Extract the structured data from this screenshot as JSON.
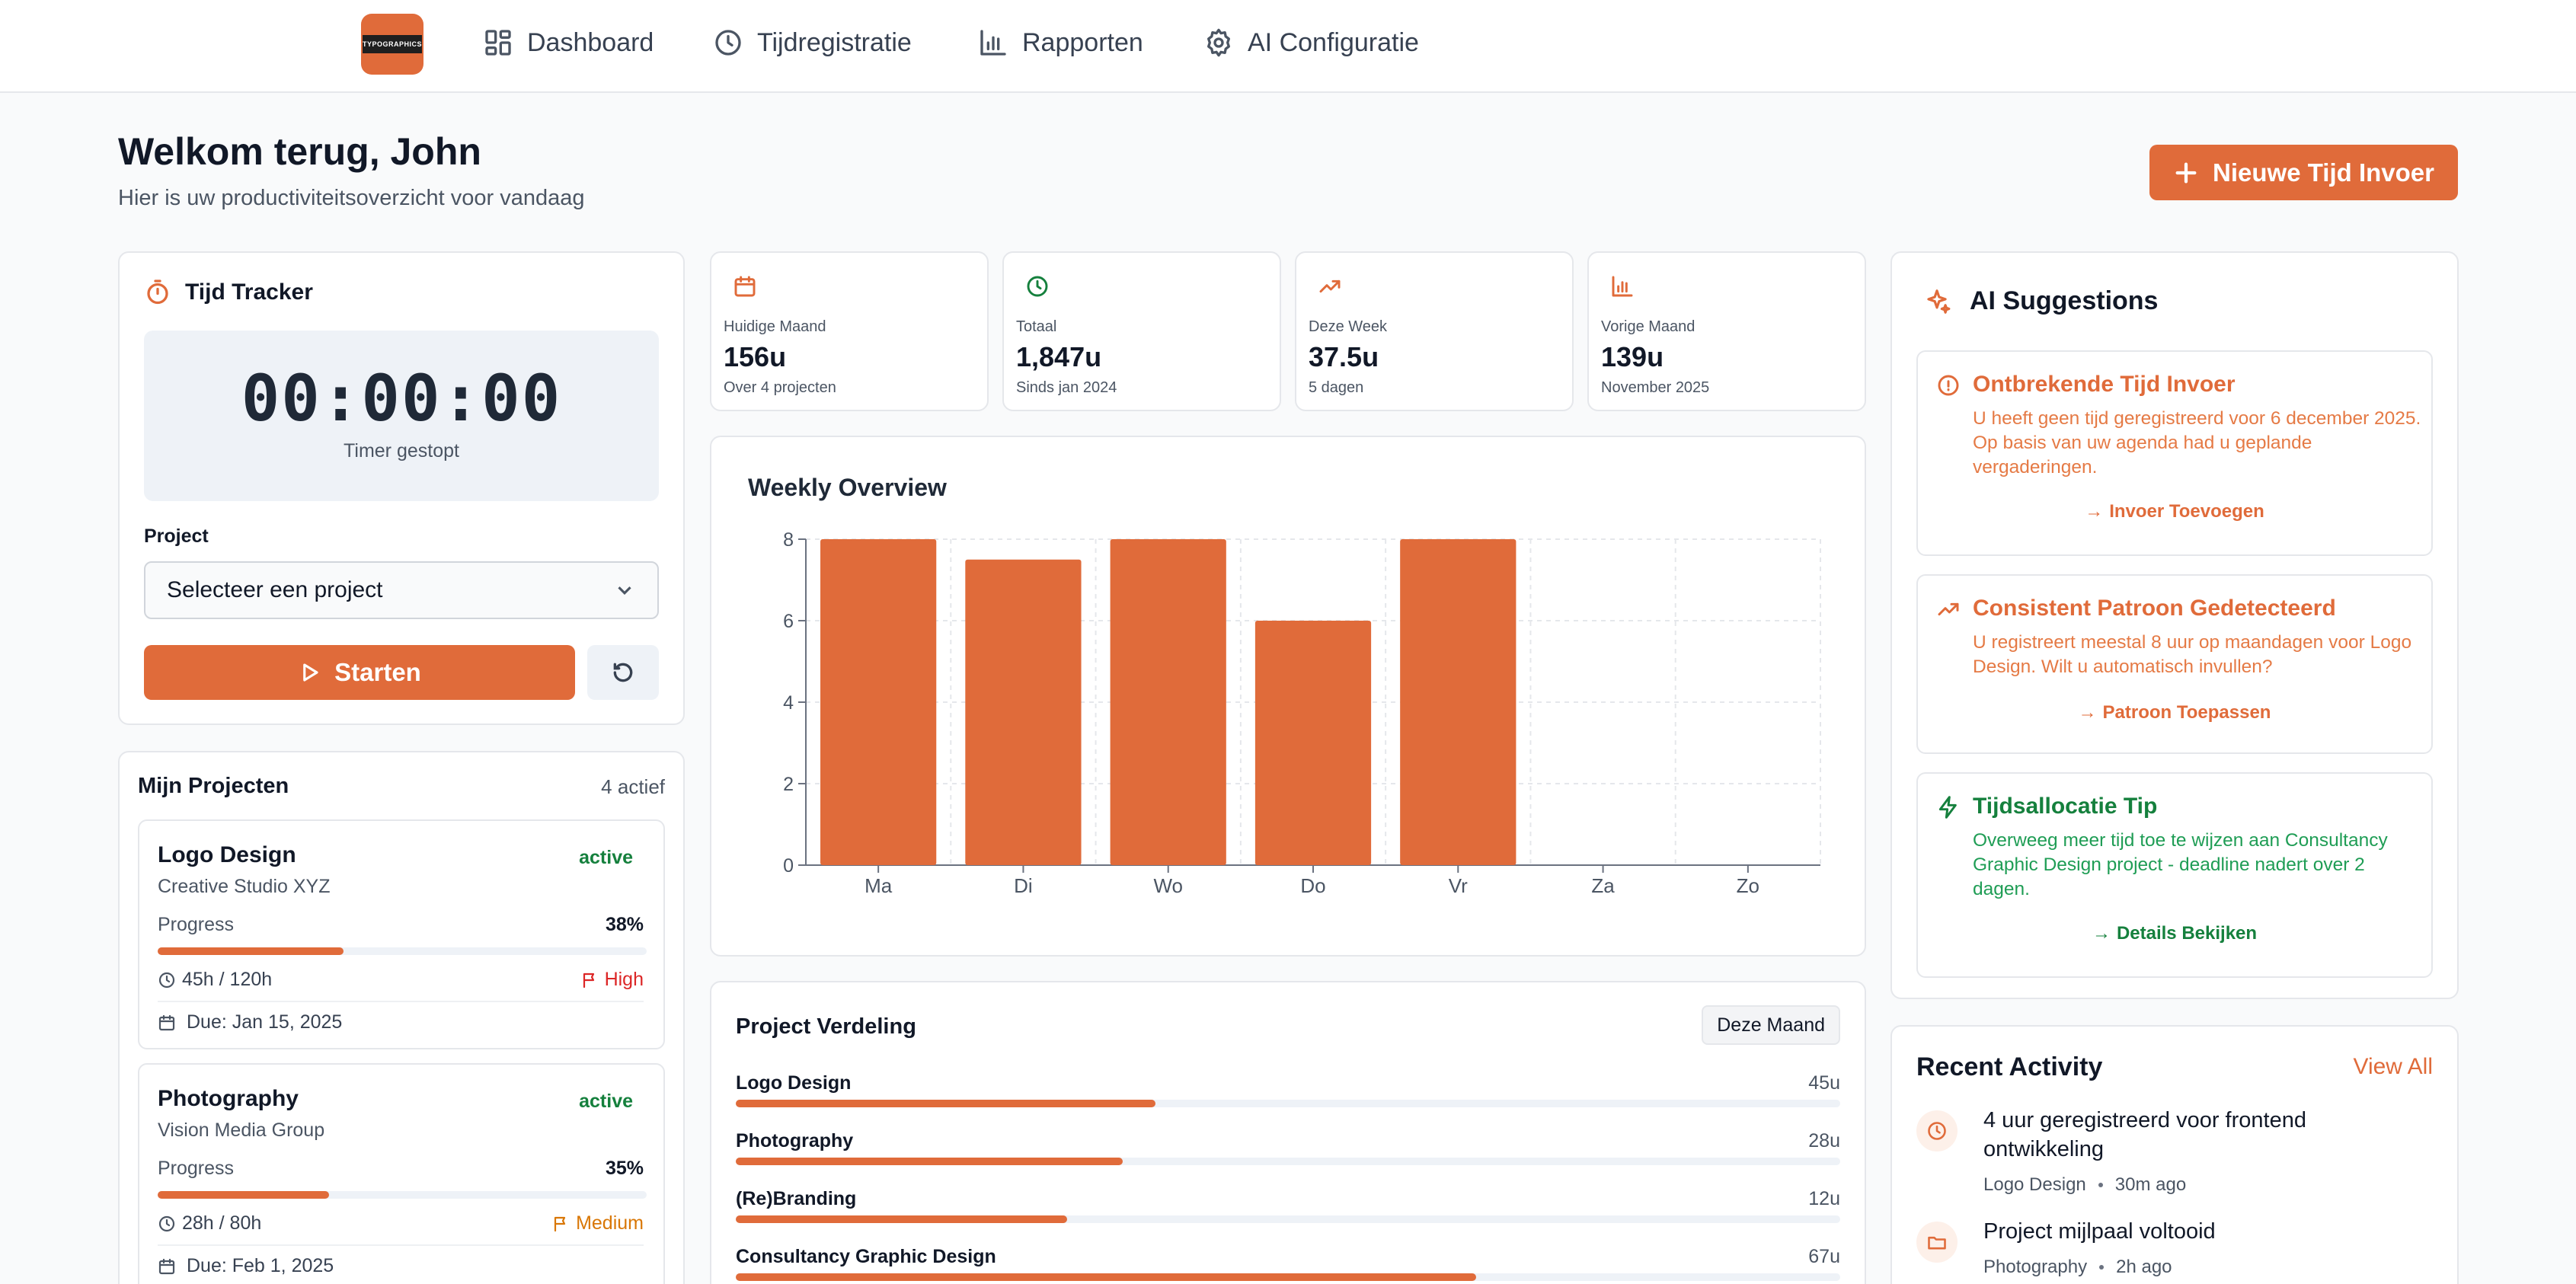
{
  "nav": {
    "logo_text": "TYPOGRAPHICS",
    "items": [
      {
        "label": "Dashboard",
        "icon": "dashboard-icon"
      },
      {
        "label": "Tijdregistratie",
        "icon": "clock-icon"
      },
      {
        "label": "Rapporten",
        "icon": "bar-chart-icon"
      },
      {
        "label": "AI Configuratie",
        "icon": "gear-icon"
      }
    ]
  },
  "header": {
    "title": "Welkom terug, John",
    "subtitle": "Hier is uw productiviteitsoverzicht voor vandaag",
    "new_button": "Nieuwe Tijd Invoer"
  },
  "tracker": {
    "title": "Tijd Tracker",
    "time": "00:00:00",
    "state": "Timer gestopt",
    "project_label": "Project",
    "project_placeholder": "Selecteer een project",
    "start_label": "Starten"
  },
  "projects": {
    "title": "Mijn Projecten",
    "count": "4 actief",
    "items": [
      {
        "name": "Logo Design",
        "client": "Creative Studio XYZ",
        "status": "active",
        "progress_label": "Progress",
        "progress": "38%",
        "progress_value": 0.38,
        "hours": "45h / 120h",
        "priority": "High",
        "priority_color": "#dc2626",
        "due": "Due: Jan 15, 2025"
      },
      {
        "name": "Photography",
        "client": "Vision Media Group",
        "status": "active",
        "progress_label": "Progress",
        "progress": "35%",
        "progress_value": 0.35,
        "hours": "28h / 80h",
        "priority": "Medium",
        "priority_color": "#d97706",
        "due": "Due: Feb 1, 2025"
      }
    ]
  },
  "stats": [
    {
      "label": "Huidige Maand",
      "value": "156u",
      "sub": "Over 4 projecten",
      "icon": "calendar-icon",
      "color": "#e06b3a"
    },
    {
      "label": "Totaal",
      "value": "1,847u",
      "sub": "Sinds jan 2024",
      "icon": "clock-icon",
      "color": "#15803d"
    },
    {
      "label": "Deze Week",
      "value": "37.5u",
      "sub": "5 dagen",
      "icon": "trending-up-icon",
      "color": "#e06b3a"
    },
    {
      "label": "Vorige Maand",
      "value": "139u",
      "sub": "November 2025",
      "icon": "bar-chart-icon",
      "color": "#e06b3a"
    }
  ],
  "weekly": {
    "title": "Weekly Overview"
  },
  "chart_data": {
    "type": "bar",
    "title": "Weekly Overview",
    "categories": [
      "Ma",
      "Di",
      "Wo",
      "Do",
      "Vr",
      "Za",
      "Zo"
    ],
    "values": [
      8,
      7.5,
      8,
      6,
      8,
      0,
      0
    ],
    "ylim": [
      0,
      8
    ],
    "yticks": [
      0,
      2,
      4,
      6,
      8
    ],
    "grid": true,
    "color": "#e06b3a"
  },
  "distribution": {
    "title": "Project Verdeling",
    "period": "Deze Maand",
    "items": [
      {
        "name": "Logo Design",
        "value": "45u",
        "fraction": 0.38
      },
      {
        "name": "Photography",
        "value": "28u",
        "fraction": 0.35
      },
      {
        "name": "(Re)Branding",
        "value": "12u",
        "fraction": 0.3
      },
      {
        "name": "Consultancy Graphic Design",
        "value": "67u",
        "fraction": 0.67
      }
    ]
  },
  "ai": {
    "title": "AI Suggestions",
    "suggestions": [
      {
        "title": "Ontbrekende Tijd Invoer",
        "text": "U heeft geen tijd geregistreerd voor 6 december 2025. Op basis van uw agenda had u geplande vergaderingen.",
        "action": "Invoer Toevoegen",
        "color": "#e06b3a",
        "icon": "alert-circle-icon"
      },
      {
        "title": "Consistent Patroon Gedetecteerd",
        "text": "U registreert meestal 8 uur op maandagen voor Logo Design. Wilt u automatisch invullen?",
        "action": "Patroon Toepassen",
        "color": "#e06b3a",
        "icon": "trending-up-icon"
      },
      {
        "title": "Tijdsallocatie Tip",
        "text": "Overweeg meer tijd toe te wijzen aan Consultancy Graphic Design project - deadline nadert over 2 dagen.",
        "action": "Details Bekijken",
        "color": "#15803d",
        "icon": "lightning-icon"
      }
    ]
  },
  "recent": {
    "title": "Recent Activity",
    "view_all": "View All",
    "items": [
      {
        "text": "4 uur geregistreerd voor frontend ontwikkeling",
        "project": "Logo Design",
        "time": "30m ago",
        "icon": "clock-icon"
      },
      {
        "text": "Project mijlpaal voltooid",
        "project": "Photography",
        "time": "2h ago",
        "icon": "folder-icon"
      }
    ]
  }
}
